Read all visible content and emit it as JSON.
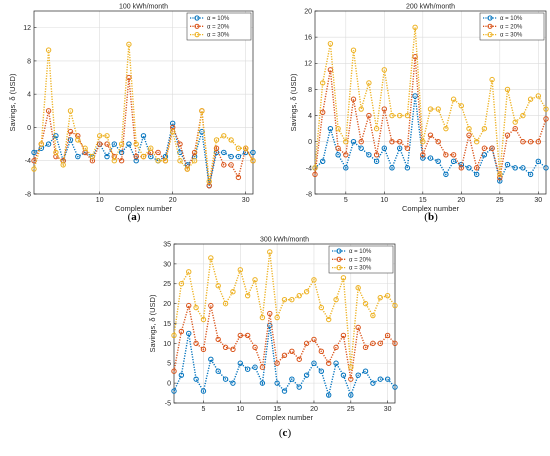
{
  "chart_data": [
    {
      "type": "line",
      "panel": "a",
      "caption_letter": "a",
      "title": "100 kWh/month",
      "xlabel": "Complex number",
      "ylabel": "Savings, δ (USD)",
      "xlim": [
        1,
        31
      ],
      "ylim": [
        -8,
        14
      ],
      "xticks": [
        10,
        20,
        30
      ],
      "yticks": [
        -8,
        -4,
        0,
        4,
        8,
        12
      ],
      "grid": true,
      "legend": "top-right",
      "x": [
        1,
        2,
        3,
        4,
        5,
        6,
        7,
        8,
        9,
        10,
        11,
        12,
        13,
        14,
        15,
        16,
        17,
        18,
        19,
        20,
        21,
        22,
        23,
        24,
        25,
        26,
        27,
        28,
        29,
        30,
        31
      ],
      "series": [
        {
          "name": "α = 10%",
          "color": "#0072BD",
          "values": [
            -3,
            -2.5,
            -2,
            -1,
            -4,
            -1.5,
            -3.5,
            -3,
            -3.5,
            -2,
            -3.5,
            -2,
            -3,
            -2,
            -4,
            -1,
            -3.5,
            -4,
            -3.5,
            0.5,
            -3,
            -4.5,
            -3.5,
            -0.5,
            -7,
            -3,
            -3,
            -3.5,
            -3.5,
            -3,
            -3
          ]
        },
        {
          "name": "α = 20%",
          "color": "#D95319",
          "values": [
            -4,
            -2,
            2,
            -3.5,
            -4,
            -0.5,
            -1,
            -3,
            -4,
            -2,
            -2,
            -3.5,
            -4,
            6,
            -3.5,
            -3.5,
            -3,
            -3,
            -4,
            0,
            -2,
            -5,
            -3,
            2,
            -7,
            -2.5,
            -4.5,
            -4.5,
            -6,
            -2.5,
            -4
          ]
        },
        {
          "name": "α = 30%",
          "color": "#EDB120",
          "values": [
            -5,
            -2,
            9.3,
            -3,
            -4.5,
            2,
            -1.5,
            -2.5,
            -3.5,
            -1,
            -1,
            -4,
            -2,
            10,
            -2,
            -3.5,
            -2.5,
            -4,
            -4,
            -0.5,
            -4,
            -5,
            -4,
            2,
            -6.5,
            -1.5,
            -1,
            -1.5,
            -2.5,
            -2.5,
            -4
          ]
        }
      ]
    },
    {
      "type": "line",
      "panel": "b",
      "caption_letter": "b",
      "title": "200 kWh/month",
      "xlabel": "Complex number",
      "ylabel": "Savings, δ (USD)",
      "xlim": [
        1,
        31
      ],
      "ylim": [
        -8,
        20
      ],
      "xticks": [
        5,
        10,
        15,
        20,
        25,
        30
      ],
      "yticks": [
        -8,
        -4,
        0,
        4,
        8,
        12,
        16,
        20
      ],
      "grid": true,
      "legend": "top-right",
      "x": [
        1,
        2,
        3,
        4,
        5,
        6,
        7,
        8,
        9,
        10,
        11,
        12,
        13,
        14,
        15,
        16,
        17,
        18,
        19,
        20,
        21,
        22,
        23,
        24,
        25,
        26,
        27,
        28,
        29,
        30,
        31
      ],
      "series": [
        {
          "name": "α = 10%",
          "color": "#0072BD",
          "values": [
            -4,
            -3,
            2,
            -2,
            -4,
            0,
            -1,
            -2,
            -3,
            -1,
            -4,
            -1,
            -4,
            7,
            -2.5,
            -2.5,
            -3,
            -5,
            -3,
            -3.5,
            -4,
            -5,
            -2,
            -1,
            -6,
            -3.5,
            -4,
            -4,
            -5,
            -3,
            -4
          ]
        },
        {
          "name": "α = 20%",
          "color": "#D95319",
          "values": [
            -5,
            4.5,
            11,
            -1,
            -2,
            6.5,
            0,
            4,
            -2,
            5,
            0,
            0,
            -1,
            13,
            -2,
            1,
            0,
            -2,
            -2,
            -4,
            1,
            -4,
            -1,
            -1,
            -5.5,
            1,
            2,
            0,
            0,
            0,
            3.5
          ]
        },
        {
          "name": "α = 30%",
          "color": "#EDB120",
          "values": [
            -4,
            9,
            15,
            2,
            0,
            14,
            5,
            9,
            2,
            11,
            4,
            4,
            4,
            17.5,
            0,
            5,
            5,
            2,
            6.5,
            5.5,
            2,
            0,
            2,
            9.5,
            -5,
            8,
            3,
            4,
            6.5,
            7,
            5
          ]
        }
      ]
    },
    {
      "type": "line",
      "panel": "c",
      "caption_letter": "c",
      "title": "300 kWh/month",
      "xlabel": "Complex number",
      "ylabel": "Savings, δ (USD)",
      "xlim": [
        1,
        31
      ],
      "ylim": [
        -5,
        35
      ],
      "xticks": [
        5,
        10,
        15,
        20,
        25,
        30
      ],
      "yticks": [
        -5,
        0,
        5,
        10,
        15,
        20,
        25,
        30,
        35
      ],
      "grid": true,
      "legend": "top-right",
      "x": [
        1,
        2,
        3,
        4,
        5,
        6,
        7,
        8,
        9,
        10,
        11,
        12,
        13,
        14,
        15,
        16,
        17,
        18,
        19,
        20,
        21,
        22,
        23,
        24,
        25,
        26,
        27,
        28,
        29,
        30,
        31
      ],
      "series": [
        {
          "name": "α = 10%",
          "color": "#0072BD",
          "values": [
            -2,
            2,
            12.5,
            1,
            -2,
            6,
            3,
            1,
            0,
            5,
            3.5,
            4,
            0,
            14.5,
            0,
            -2,
            1,
            -1,
            2,
            5,
            3,
            -3,
            5,
            2,
            -3,
            2,
            3,
            0,
            1,
            1,
            -1
          ]
        },
        {
          "name": "α = 20%",
          "color": "#D95319",
          "values": [
            3,
            13,
            19.5,
            10,
            8.5,
            19.5,
            11,
            9,
            8.5,
            12,
            12,
            9,
            4,
            17.5,
            5,
            7,
            8,
            6,
            10,
            11,
            8,
            5,
            9,
            12,
            1,
            14,
            9,
            10,
            10,
            12,
            10
          ]
        },
        {
          "name": "α = 30%",
          "color": "#EDB120",
          "values": [
            12,
            25,
            28,
            19,
            16,
            31.5,
            24.5,
            20,
            23,
            28.5,
            22,
            26,
            16.5,
            33,
            16.5,
            21,
            21,
            22,
            23,
            26,
            19,
            16,
            21,
            26.5,
            4,
            24,
            20,
            17,
            21.5,
            22,
            19.5
          ]
        }
      ]
    }
  ]
}
